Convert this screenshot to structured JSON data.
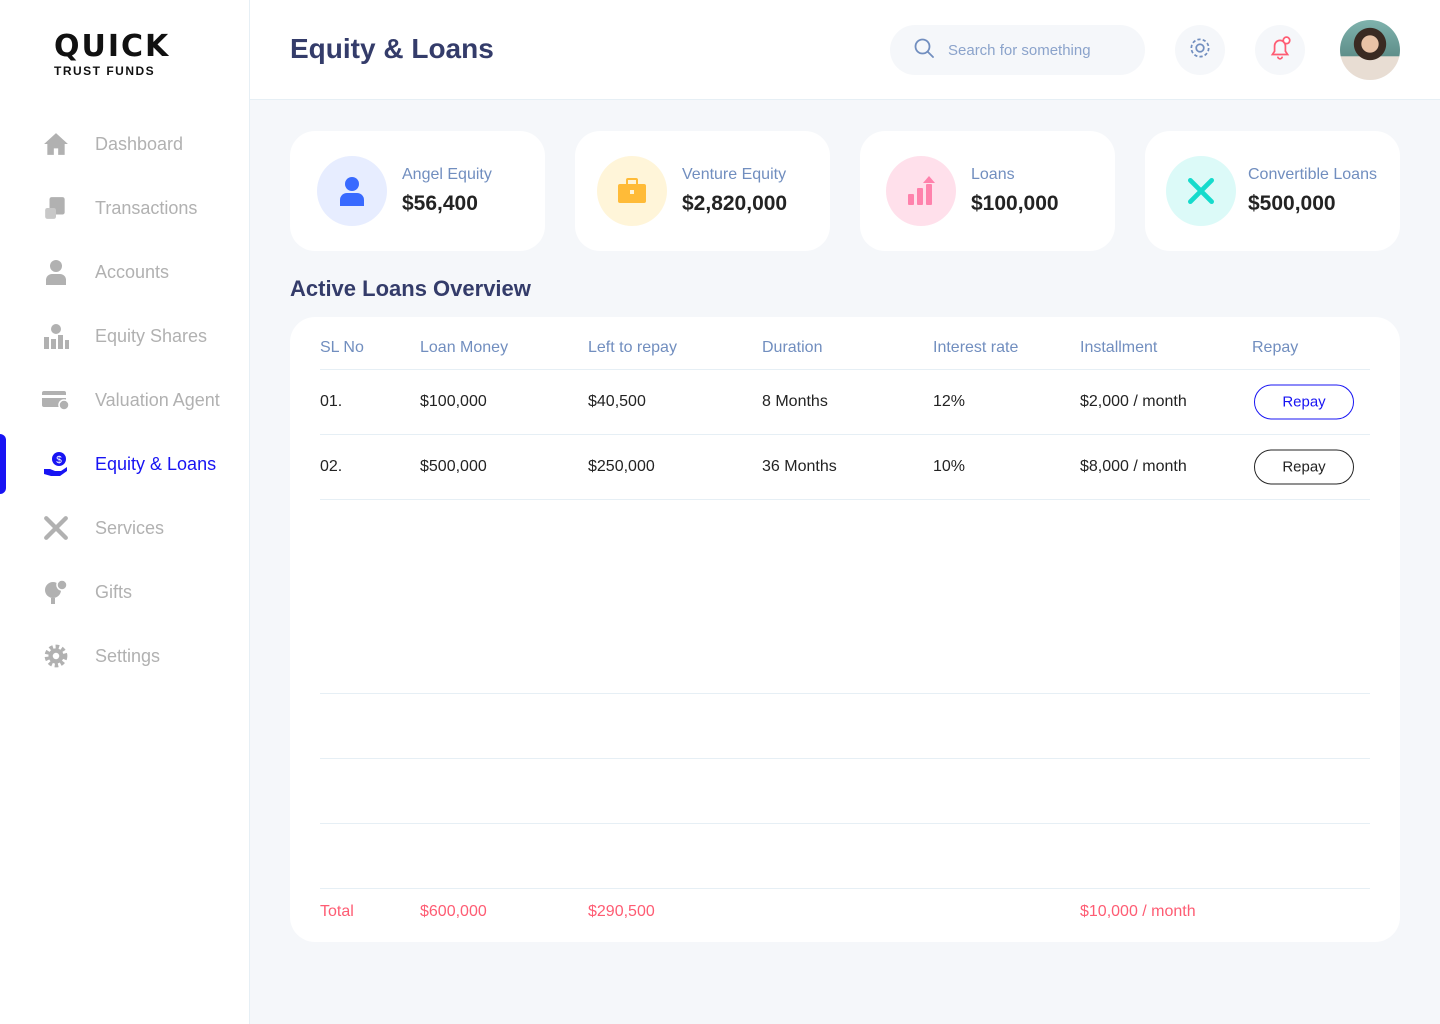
{
  "brand": {
    "name": "QUICK",
    "tagline": "TRUST FUNDS"
  },
  "sidebar": {
    "items": [
      {
        "label": "Dashboard",
        "icon": "home-icon"
      },
      {
        "label": "Transactions",
        "icon": "transfer-icon"
      },
      {
        "label": "Accounts",
        "icon": "user-icon"
      },
      {
        "label": "Equity Shares",
        "icon": "equity-icon"
      },
      {
        "label": "Valuation Agent",
        "icon": "credit-card-icon"
      },
      {
        "label": "Equity & Loans",
        "icon": "loan-icon",
        "active": true
      },
      {
        "label": "Services",
        "icon": "tools-icon"
      },
      {
        "label": "Gifts",
        "icon": "gift-icon"
      },
      {
        "label": "Settings",
        "icon": "gear-icon"
      }
    ]
  },
  "header": {
    "title": "Equity & Loans",
    "search_placeholder": "Search for something"
  },
  "cards": [
    {
      "label": "Angel Equity",
      "value": "$56,400",
      "color": "#396aff",
      "bg": "#e7edff"
    },
    {
      "label": "Venture Equity",
      "value": "$2,820,000",
      "color": "#ffbb38",
      "bg": "#fff5d9"
    },
    {
      "label": "Loans",
      "value": "$100,000",
      "color": "#ff82ac",
      "bg": "#ffe0eb"
    },
    {
      "label": "Convertible Loans",
      "value": "$500,000",
      "color": "#16dbcc",
      "bg": "#dcfaf8"
    }
  ],
  "section_title": "Active Loans Overview",
  "table": {
    "headers": [
      "SL No",
      "Loan Money",
      "Left to repay",
      "Duration",
      "Interest rate",
      "Installment",
      "Repay"
    ],
    "rows": [
      {
        "sl": "01.",
        "loan": "$100,000",
        "left": "$40,500",
        "duration": "8 Months",
        "rate": "12%",
        "installment": "$2,000 / month",
        "action": "Repay"
      },
      {
        "sl": "02.",
        "loan": "$500,000",
        "left": "$250,000",
        "duration": "36 Months",
        "rate": "10%",
        "installment": "$8,000 / month",
        "action": "Repay"
      }
    ],
    "total": {
      "label": "Total",
      "loan": "$600,000",
      "left": "$290,500",
      "installment": "$10,000 / month"
    }
  }
}
